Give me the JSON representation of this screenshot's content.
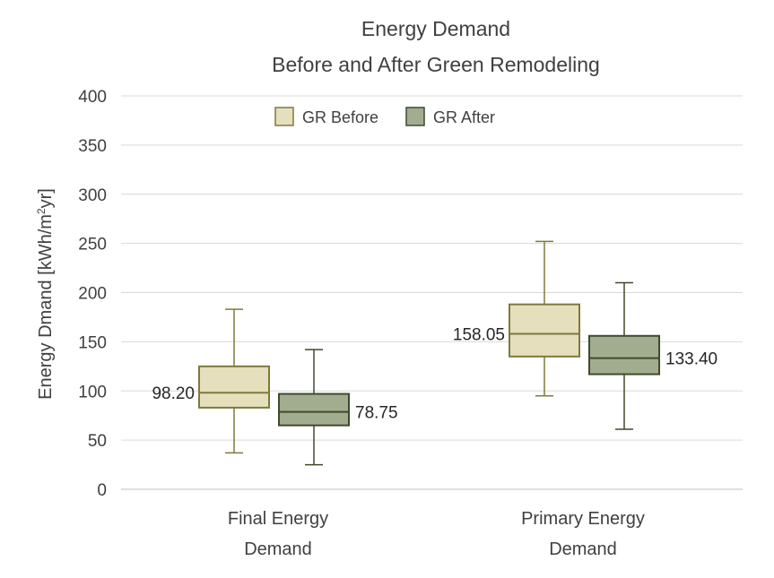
{
  "chart_data": {
    "type": "boxplot",
    "title": "Energy Demand",
    "subtitle": "Before and After Green Remodeling",
    "ylabel_main": "Energy Dmand [kWh/m",
    "ylabel_sup": "2",
    "ylabel_end": "yr]",
    "ylim": [
      0,
      400
    ],
    "yticks": [
      0,
      50,
      100,
      150,
      200,
      250,
      300,
      350,
      400
    ],
    "categories": [
      {
        "line1": "Final Energy",
        "line2": "Demand"
      },
      {
        "line1": "Primary Energy",
        "line2": "Demand"
      }
    ],
    "legend_position": "top-center",
    "series": [
      {
        "name": "GR Before",
        "fill": "#e5dfbd",
        "stroke": "#7c7a3c",
        "boxes": [
          {
            "min": 37,
            "q1": 83,
            "median": 98.2,
            "q3": 125,
            "max": 183,
            "label": "98.20"
          },
          {
            "min": 95,
            "q1": 135,
            "median": 158.05,
            "q3": 188,
            "max": 252,
            "label": "158.05"
          }
        ]
      },
      {
        "name": "GR After",
        "fill": "#a2ad90",
        "stroke": "#3f4a2c",
        "boxes": [
          {
            "min": 25,
            "q1": 65,
            "median": 78.75,
            "q3": 97,
            "max": 142,
            "label": "78.75"
          },
          {
            "min": 61,
            "q1": 117,
            "median": 133.4,
            "q3": 156,
            "max": 210,
            "label": "133.40"
          }
        ]
      }
    ]
  }
}
